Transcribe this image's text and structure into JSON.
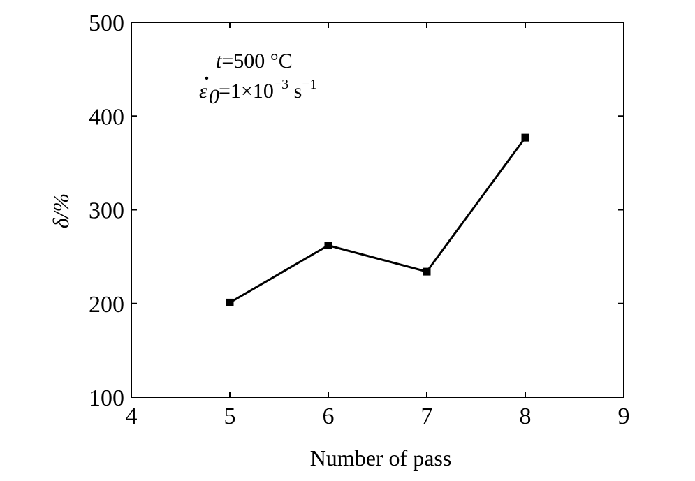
{
  "chart_data": {
    "type": "line",
    "xlabel": "Number of pass",
    "ylabel": "δ/%",
    "xlim": [
      4,
      9
    ],
    "ylim": [
      100,
      500
    ],
    "xticks": [
      4,
      5,
      6,
      7,
      8,
      9
    ],
    "yticks": [
      100,
      200,
      300,
      400,
      500
    ],
    "grid": false,
    "annotations": {
      "line1": {
        "var": "t",
        "text": "=500 °C"
      },
      "line2": {
        "base": "1×10",
        "exp1": "−3",
        "unit": " s",
        "exp2": "−1"
      }
    },
    "series": [
      {
        "x": [
          5,
          6,
          7,
          8
        ],
        "y": [
          201,
          262,
          234,
          377
        ],
        "color": "#000000",
        "marker": "square"
      }
    ]
  }
}
